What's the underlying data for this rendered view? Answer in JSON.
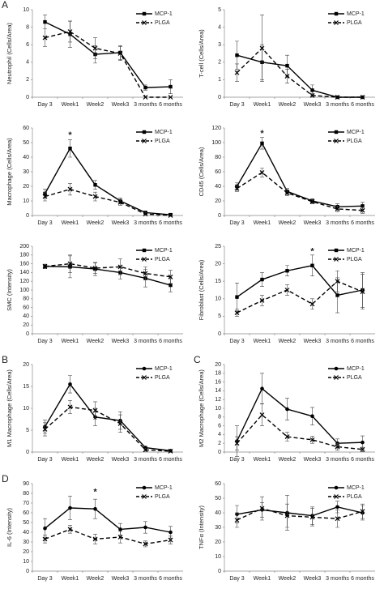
{
  "chart_data": [
    {
      "type": "line",
      "ylabel": "Neutrophil (Cells/Area)",
      "panel": "A",
      "categories": [
        "Day 3",
        "Week1",
        "Week2",
        "Week3",
        "3 months",
        "6 months"
      ],
      "ylim": [
        0,
        10
      ],
      "yticks": [
        0,
        2,
        4,
        6,
        8,
        10
      ],
      "series": [
        {
          "name": "MCP-1",
          "color": "#000000",
          "line_style": "solid",
          "marker": "square",
          "values": [
            8.6,
            7.2,
            4.9,
            5.1,
            1.1,
            1.2
          ],
          "errors": [
            0.8,
            1.5,
            1.0,
            0.8,
            0.3,
            0.8
          ]
        },
        {
          "name": "PLGA",
          "color": "#000000",
          "line_style": "dashed",
          "marker": "x",
          "values": [
            6.8,
            7.5,
            5.6,
            5.0,
            0,
            0
          ],
          "errors": [
            1.0,
            1.2,
            1.2,
            0.8,
            0,
            0
          ]
        }
      ]
    },
    {
      "type": "line",
      "ylabel": "T-cell (Cells/Area)",
      "categories": [
        "Day 3",
        "Week1",
        "Week2",
        "Week3",
        "3 months",
        "6 months"
      ],
      "ylim": [
        0,
        5
      ],
      "yticks": [
        0,
        1,
        2,
        3,
        4,
        5
      ],
      "series": [
        {
          "name": "MCP-1",
          "color": "#000000",
          "line_style": "solid",
          "marker": "square",
          "values": [
            2.4,
            2.0,
            1.8,
            0.4,
            0,
            0
          ],
          "errors": [
            0.8,
            1.0,
            0.6,
            0.3,
            0,
            0
          ]
        },
        {
          "name": "PLGA",
          "color": "#000000",
          "line_style": "dashed",
          "marker": "x",
          "values": [
            1.4,
            2.8,
            1.2,
            0.1,
            0,
            0
          ],
          "errors": [
            0.5,
            1.9,
            0.4,
            0.1,
            0,
            0
          ]
        }
      ]
    },
    {
      "type": "line",
      "ylabel": "Macrophage (Cells/Area)",
      "categories": [
        "Day 3",
        "Week1",
        "Week2",
        "Week3",
        "3 months",
        "6 months"
      ],
      "ylim": [
        0,
        60
      ],
      "yticks": [
        0,
        10,
        20,
        30,
        40,
        50,
        60
      ],
      "annotations": [
        {
          "text": "*",
          "x": "Week1",
          "y": 55
        }
      ],
      "series": [
        {
          "name": "MCP-1",
          "color": "#000000",
          "line_style": "solid",
          "marker": "square",
          "values": [
            15,
            46,
            21,
            10,
            2,
            0.5
          ],
          "errors": [
            3,
            6,
            3,
            2,
            1,
            0.5
          ]
        },
        {
          "name": "PLGA",
          "color": "#000000",
          "line_style": "dashed",
          "marker": "x",
          "values": [
            13,
            18,
            13,
            9,
            1,
            0
          ],
          "errors": [
            3,
            4,
            3,
            2,
            1,
            0.5
          ]
        }
      ]
    },
    {
      "type": "line",
      "ylabel": "CD45 (Cells/Area)",
      "categories": [
        "Day 3",
        "Week1",
        "Week2",
        "Week3",
        "3 months",
        "6 months"
      ],
      "ylim": [
        0,
        120
      ],
      "yticks": [
        0,
        20,
        40,
        60,
        80,
        100,
        120
      ],
      "annotations": [
        {
          "text": "*",
          "x": "Week1",
          "y": 112
        }
      ],
      "series": [
        {
          "name": "MCP-1",
          "color": "#000000",
          "line_style": "solid",
          "marker": "square",
          "values": [
            40,
            99,
            33,
            20,
            12,
            13
          ],
          "errors": [
            5,
            8,
            4,
            3,
            4,
            5
          ]
        },
        {
          "name": "PLGA",
          "color": "#000000",
          "line_style": "dashed",
          "marker": "x",
          "values": [
            37,
            59,
            31,
            19,
            9,
            7
          ],
          "errors": [
            4,
            6,
            4,
            3,
            4,
            4
          ]
        }
      ]
    },
    {
      "type": "line",
      "ylabel": "SMC (Intensity)",
      "categories": [
        "Day 3",
        "Week1",
        "Week2",
        "Week3",
        "3 months",
        "6 months"
      ],
      "ylim": [
        0,
        200
      ],
      "yticks": [
        0,
        20,
        40,
        60,
        80,
        100,
        120,
        140,
        160,
        180,
        200
      ],
      "series": [
        {
          "name": "MCP-1",
          "color": "#000000",
          "line_style": "solid",
          "marker": "square",
          "values": [
            154,
            153,
            148,
            140,
            127,
            111
          ],
          "errors": [
            5,
            25,
            15,
            15,
            20,
            15
          ]
        },
        {
          "name": "PLGA",
          "color": "#000000",
          "line_style": "dashed",
          "marker": "x",
          "values": [
            154,
            160,
            150,
            153,
            138,
            130
          ],
          "errors": [
            5,
            20,
            12,
            18,
            15,
            15
          ]
        }
      ]
    },
    {
      "type": "line",
      "ylabel": "Fibroblast (Cells/Area)",
      "categories": [
        "Day 3",
        "Week1",
        "Week2",
        "Week3",
        "3 months",
        "6 months"
      ],
      "ylim": [
        0,
        25
      ],
      "yticks": [
        0,
        5,
        10,
        15,
        20,
        25
      ],
      "annotations": [
        {
          "text": "*",
          "x": "Week3",
          "y": 23.5
        }
      ],
      "series": [
        {
          "name": "MCP-1",
          "color": "#000000",
          "line_style": "solid",
          "marker": "square",
          "values": [
            10.5,
            15.5,
            18,
            19.5,
            11,
            12.5
          ],
          "errors": [
            4,
            2,
            1.5,
            3,
            5,
            5
          ]
        },
        {
          "name": "PLGA",
          "color": "#000000",
          "line_style": "dashed",
          "marker": "x",
          "values": [
            6,
            9.5,
            12.5,
            8.5,
            15,
            12
          ],
          "errors": [
            1,
            1.5,
            1.5,
            1.5,
            3,
            5
          ]
        }
      ]
    },
    {
      "type": "line",
      "ylabel": "M1 Macrophage (Cells/Area)",
      "panel": "B",
      "categories": [
        "Day 3",
        "Week1",
        "Week2",
        "Week3",
        "3 months",
        "6 months"
      ],
      "ylim": [
        0,
        20
      ],
      "yticks": [
        0,
        5,
        10,
        15,
        20
      ],
      "series": [
        {
          "name": "MCP-1",
          "color": "#000000",
          "line_style": "solid",
          "marker": "circle",
          "values": [
            5.8,
            15.5,
            8,
            7.2,
            1,
            0.3
          ],
          "errors": [
            1.5,
            2,
            2,
            2,
            0.3,
            0.2
          ]
        },
        {
          "name": "PLGA",
          "color": "#000000",
          "line_style": "dashed",
          "marker": "x",
          "values": [
            5.2,
            10.3,
            9.5,
            6.5,
            0.5,
            0.2
          ],
          "errors": [
            1.5,
            1.5,
            2,
            2,
            0.3,
            0.2
          ]
        }
      ]
    },
    {
      "type": "line",
      "ylabel": "M2 Macrophage (Cells/Area)",
      "panel": "C",
      "categories": [
        "Day 3",
        "Week1",
        "Week2",
        "Week3",
        "3 months",
        "6 months"
      ],
      "ylim": [
        0,
        20
      ],
      "yticks": [
        0,
        2,
        4,
        6,
        8,
        10,
        12,
        14,
        16,
        18,
        20
      ],
      "series": [
        {
          "name": "MCP-1",
          "color": "#000000",
          "line_style": "solid",
          "marker": "circle",
          "values": [
            2.5,
            14.5,
            9.8,
            8.2,
            2,
            2.2
          ],
          "errors": [
            3.5,
            3.5,
            2.5,
            2,
            1,
            1.5
          ]
        },
        {
          "name": "PLGA",
          "color": "#000000",
          "line_style": "dashed",
          "marker": "x",
          "values": [
            2,
            8.5,
            3.5,
            2.8,
            1.2,
            0.6
          ],
          "errors": [
            1.5,
            2.5,
            1,
            0.8,
            0.8,
            0.5
          ]
        }
      ]
    },
    {
      "type": "line",
      "ylabel": "IL-6 (Intensity)",
      "panel": "D",
      "categories": [
        "Day 3",
        "Week1",
        "Week2",
        "Week3",
        "3 months",
        "6 months"
      ],
      "ylim": [
        0,
        90
      ],
      "yticks": [
        0,
        10,
        20,
        30,
        40,
        50,
        60,
        70,
        80,
        90
      ],
      "annotations": [
        {
          "text": "*",
          "x": "Week2",
          "y": 81
        }
      ],
      "series": [
        {
          "name": "MCP-1",
          "color": "#000000",
          "line_style": "solid",
          "marker": "circle",
          "values": [
            44,
            65,
            64,
            43,
            45,
            40
          ],
          "errors": [
            10,
            12,
            10,
            6,
            6,
            6
          ]
        },
        {
          "name": "PLGA",
          "color": "#000000",
          "line_style": "dashed",
          "marker": "x",
          "values": [
            33,
            43,
            33,
            35,
            28,
            32
          ],
          "errors": [
            4,
            4,
            5,
            6,
            3,
            4
          ]
        }
      ]
    },
    {
      "type": "line",
      "ylabel": "TNFα (Intensity)",
      "categories": [
        "Day 3",
        "Week1",
        "Week2",
        "Week3",
        "3 months",
        "6 months"
      ],
      "ylim": [
        0,
        60
      ],
      "yticks": [
        0,
        10,
        20,
        30,
        40,
        50,
        60
      ],
      "series": [
        {
          "name": "MCP-1",
          "color": "#000000",
          "line_style": "solid",
          "marker": "circle",
          "values": [
            39,
            42,
            40,
            38,
            44,
            40
          ],
          "errors": [
            6,
            5,
            12,
            6,
            4,
            5
          ]
        },
        {
          "name": "PLGA",
          "color": "#000000",
          "line_style": "dashed",
          "marker": "x",
          "values": [
            35,
            43,
            38,
            37,
            36,
            41
          ],
          "errors": [
            5,
            8,
            8,
            6,
            6,
            5
          ]
        }
      ]
    }
  ]
}
